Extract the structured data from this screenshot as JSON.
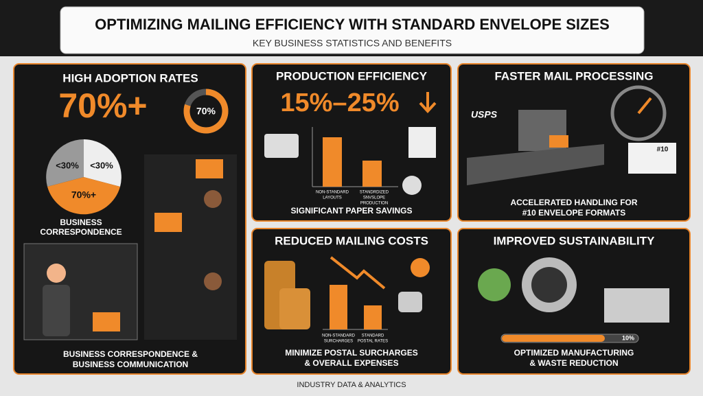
{
  "header": {
    "title": "OPTIMIZING MAILING EFFICIENCY WITH STANDARD ENVELOPE SIZES",
    "subtitle": "KEY BUSINESS STATISTICS AND BENEFITS"
  },
  "panels": [
    {
      "title": "HIGH ADOPTION RATES",
      "headline": "70%+",
      "donut_label": "70%",
      "pie_labels": [
        "<30%",
        "<30%",
        "70%+"
      ],
      "pie_caption": [
        "BUSINESS",
        "CORRESPONDENCE"
      ],
      "caption": [
        "BUSINESS CORRESPONDENCE &",
        "BUSINESS COMMUNICATION"
      ]
    },
    {
      "title": "PRODUCTION EFFICIENCY",
      "headline": "15%–25%",
      "bar_labels": [
        [
          "NON-STANDARD",
          "LAYOUTS"
        ],
        [
          "STANDRDIZED",
          "SNVSLOPE",
          "PRODUCTION"
        ]
      ],
      "caption": [
        "SIGNIFICANT PAPER SAVINGS"
      ]
    },
    {
      "title": "FASTER MAIL PROCESSING",
      "logo": "USPS",
      "envelope_label": "#10",
      "caption": [
        "ACCELERATED HANDLING FOR",
        "#10 ENVELOPE FORMATS"
      ]
    },
    {
      "title": "REDUCED MAILING COSTS",
      "bar_labels": [
        [
          "NON-STANDARD",
          "SURCHARGES"
        ],
        [
          "STANDARD",
          "POSTAL RATES"
        ]
      ],
      "caption": [
        "MINIMIZE POSTAL SURCHARGES",
        "& OVERALL EXPENSES"
      ]
    },
    {
      "title": "IMPROVED SUSTAINABILITY",
      "progress_label": "10%",
      "caption": [
        "OPTIMIZED MANUFACTURING",
        "& WASTE REDUCTION"
      ]
    }
  ],
  "footer": "INDUSTRY DATA & ANALYTICS"
}
